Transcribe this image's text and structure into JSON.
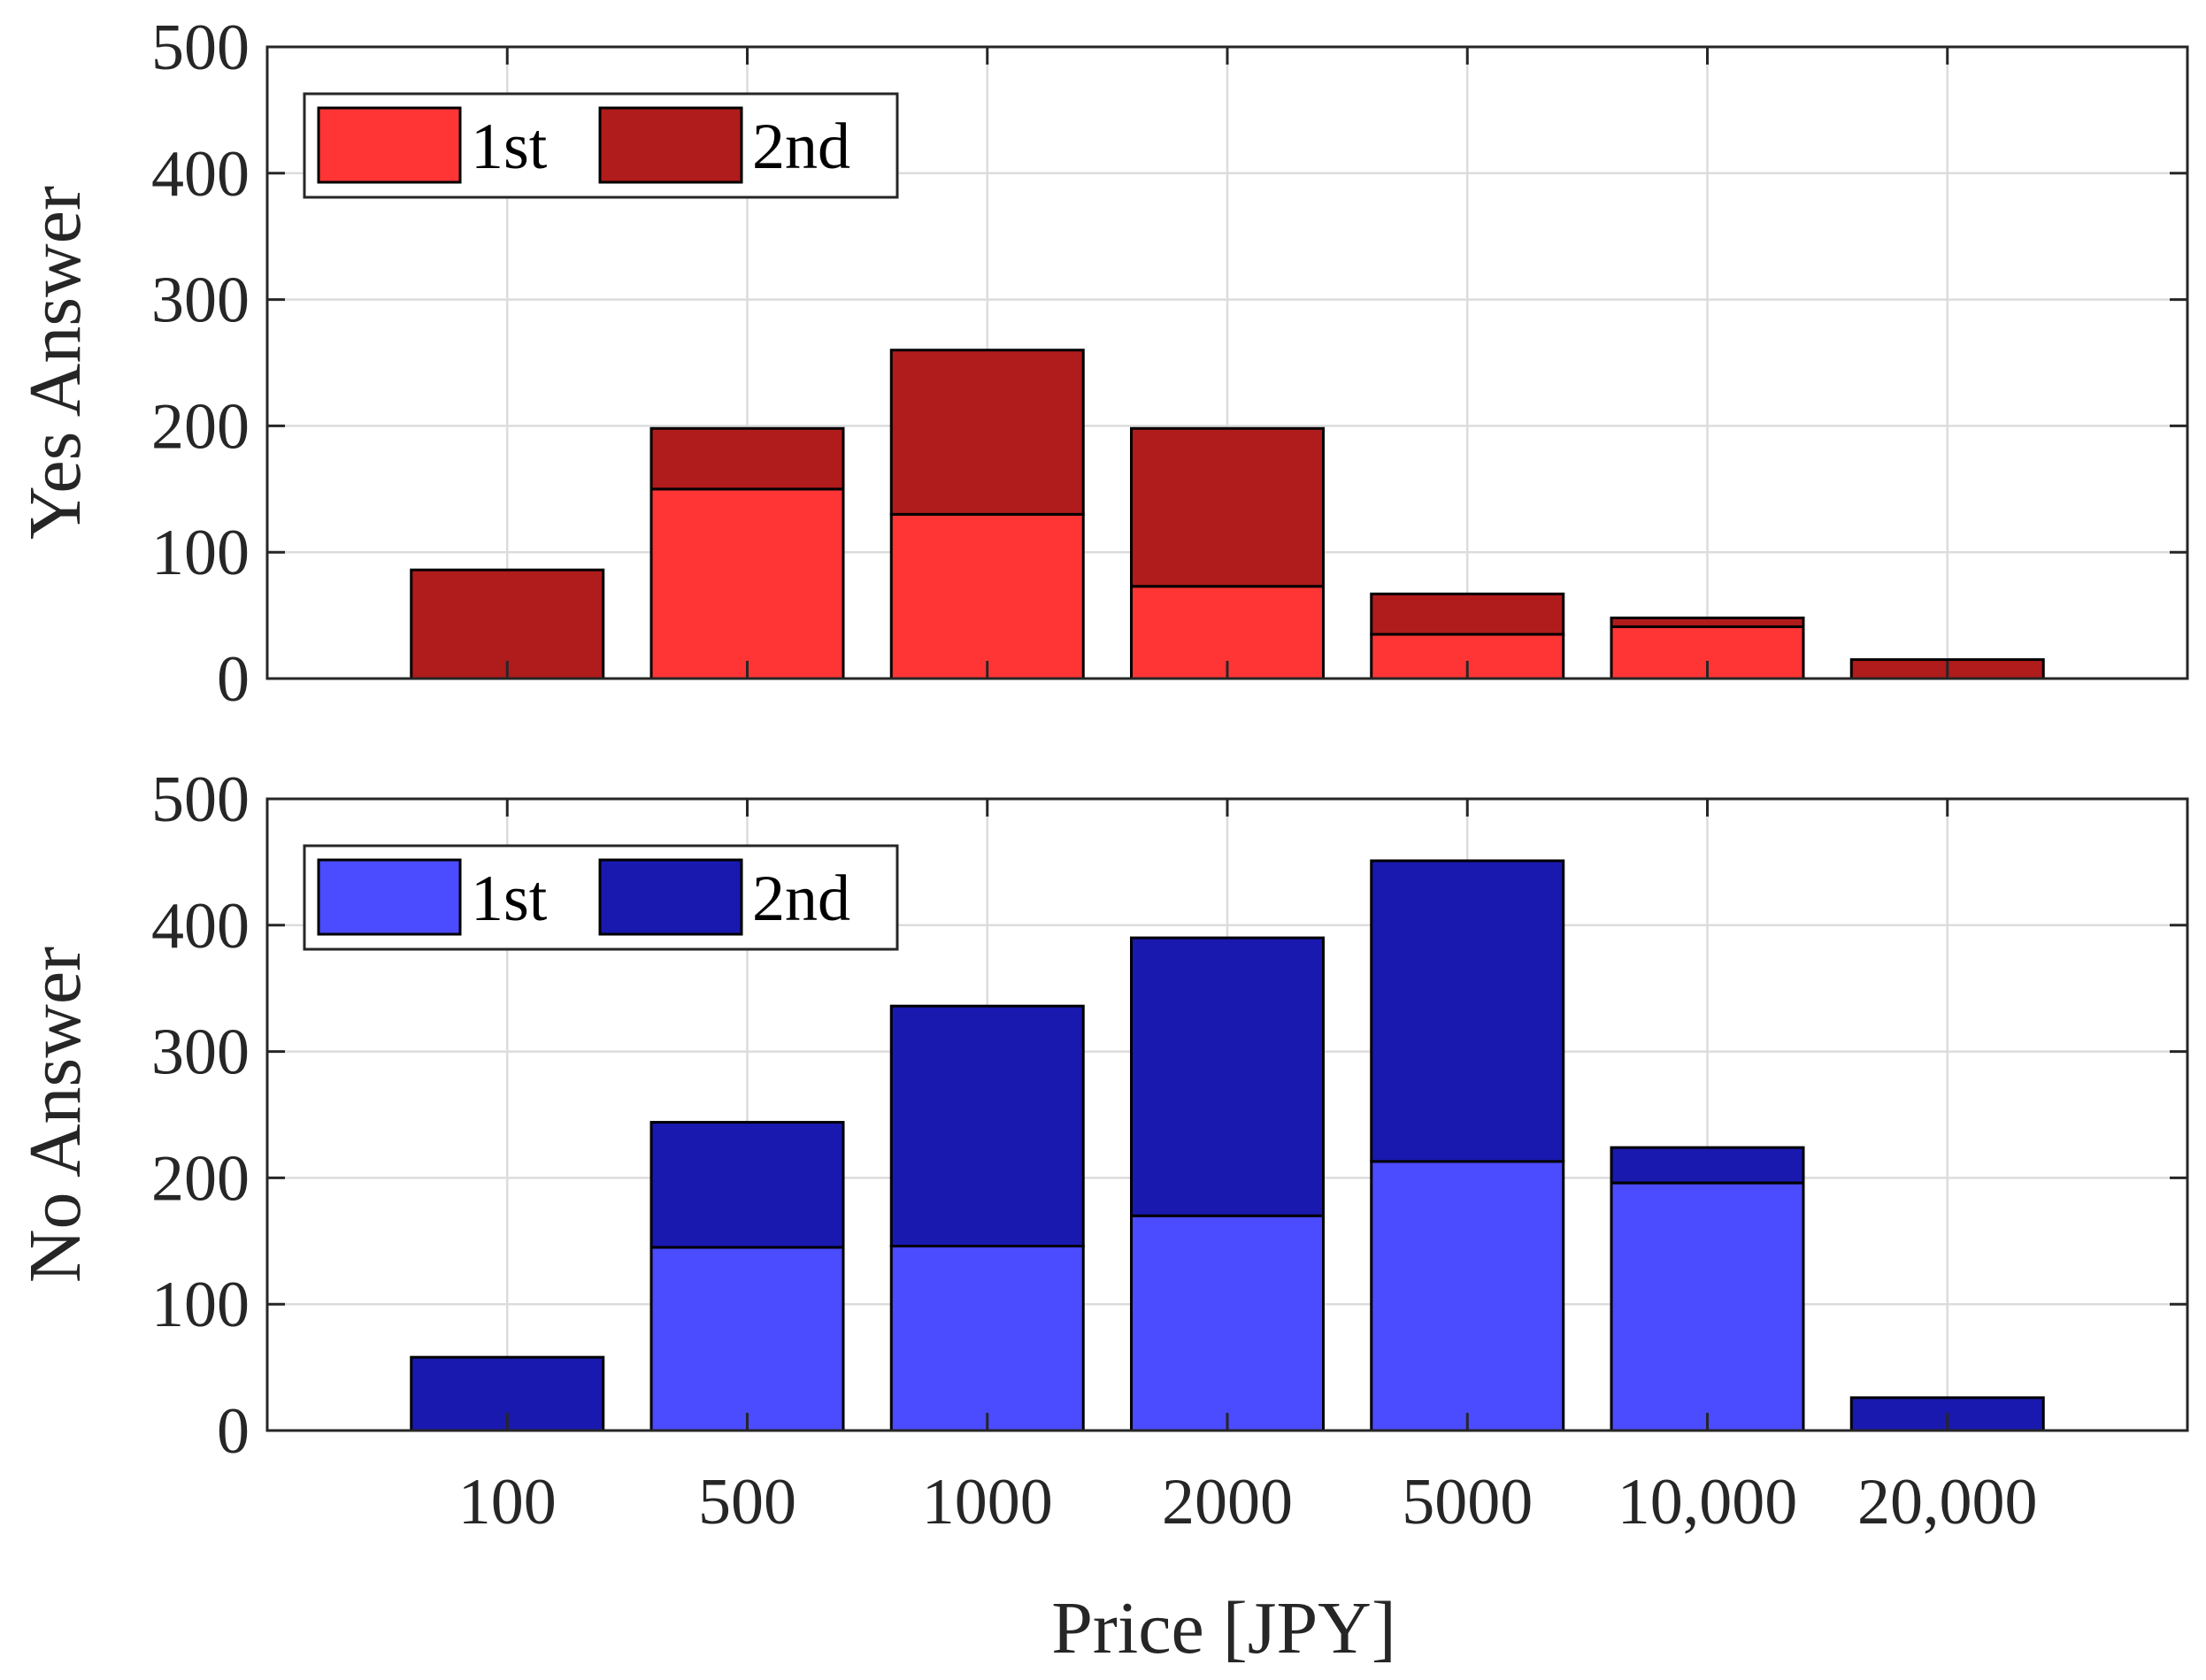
{
  "chart_data": [
    {
      "type": "bar",
      "stacked": true,
      "ylabel": "Yes Answer",
      "xlabel": "",
      "categories": [
        "100",
        "500",
        "1000",
        "2000",
        "5000",
        "10,000",
        "20,000"
      ],
      "ylim": [
        0,
        500
      ],
      "yticks": [
        0,
        100,
        200,
        300,
        400,
        500
      ],
      "grid": true,
      "legend_position": "top-left",
      "series": [
        {
          "name": "1st",
          "color": "#ff3535",
          "values": [
            0,
            150,
            130,
            73,
            35,
            41,
            0
          ]
        },
        {
          "name": "2nd",
          "color": "#b01b1b",
          "values": [
            86,
            48,
            130,
            125,
            32,
            7,
            15
          ]
        }
      ]
    },
    {
      "type": "bar",
      "stacked": true,
      "ylabel": "No Answer",
      "xlabel": "Price [JPY]",
      "categories": [
        "100",
        "500",
        "1000",
        "2000",
        "5000",
        "10,000",
        "20,000"
      ],
      "ylim": [
        0,
        500
      ],
      "yticks": [
        0,
        100,
        200,
        300,
        400,
        500
      ],
      "grid": true,
      "legend_position": "top-left",
      "series": [
        {
          "name": "1st",
          "color": "#4b4bff",
          "values": [
            0,
            145,
            146,
            170,
            213,
            196,
            0
          ]
        },
        {
          "name": "2nd",
          "color": "#1919af",
          "values": [
            58,
            99,
            190,
            220,
            238,
            28,
            26
          ]
        }
      ]
    }
  ]
}
